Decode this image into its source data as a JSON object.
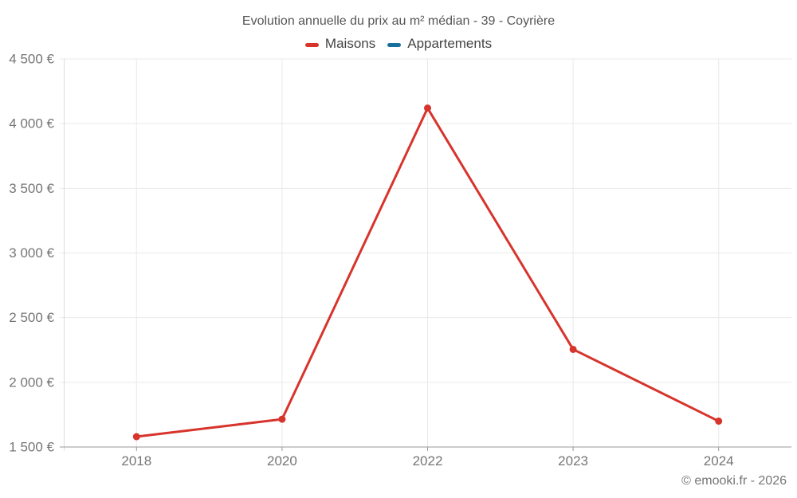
{
  "chart_data": {
    "type": "line",
    "title": "Evolution annuelle du prix au m² médian - 39 - Coyrière",
    "categories": [
      "2018",
      "2020",
      "2022",
      "2023",
      "2024"
    ],
    "series": [
      {
        "name": "Maisons",
        "color": "#d7342c",
        "values": [
          1580,
          1715,
          4120,
          2255,
          1700
        ]
      },
      {
        "name": "Appartements",
        "color": "#17709c",
        "values": []
      }
    ],
    "xlabel": "",
    "ylabel": "",
    "ylim": [
      1500,
      4500
    ],
    "ytick_step": 500,
    "ytick_labels": [
      "1 500 €",
      "2 000 €",
      "2 500 €",
      "3 000 €",
      "3 500 €",
      "4 000 €",
      "4 500 €"
    ],
    "grid": true,
    "legend_position": "top",
    "point_style": "circle"
  },
  "footer": {
    "attribution": "© emooki.fr - 2026"
  },
  "colors": {
    "gridline": "#e9e9e9",
    "axis_line": "#9a9a9a",
    "axis_border": "#dcdcdc",
    "tick_text": "#757575"
  }
}
